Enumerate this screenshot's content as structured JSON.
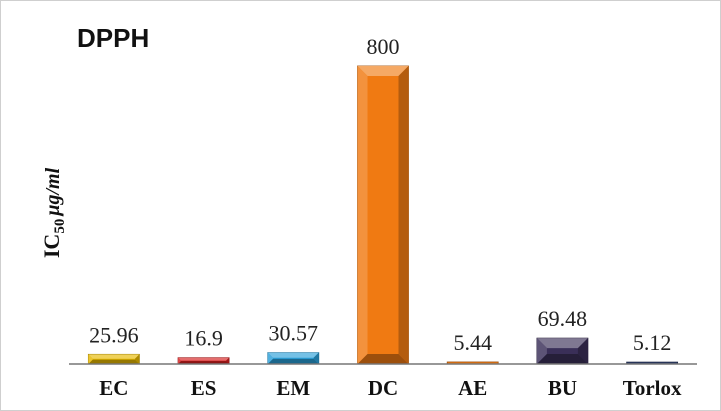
{
  "chart_data": {
    "type": "bar",
    "title": "DPPH",
    "ylabel": "IC50 μg/ml",
    "ylabel_parts": {
      "main": "IC",
      "subscript": "50",
      "unit": "μg/ml"
    },
    "categories": [
      "EC",
      "ES",
      "EM",
      "DC",
      "AE",
      "BU",
      "Torlox"
    ],
    "values": [
      25.96,
      16.9,
      30.57,
      800,
      5.44,
      69.48,
      5.12
    ],
    "value_labels": [
      "25.96",
      "16.9",
      "30.57",
      "800",
      "5.44",
      "69.48",
      "5.12"
    ],
    "bar_colors": [
      "#e6b800",
      "#d61f1f",
      "#2a9fd8",
      "#f07a12",
      "#f07a12",
      "#3a2f58",
      "#2f3f6a"
    ],
    "ylim": [
      0,
      800
    ],
    "grid": true,
    "legend": false
  }
}
